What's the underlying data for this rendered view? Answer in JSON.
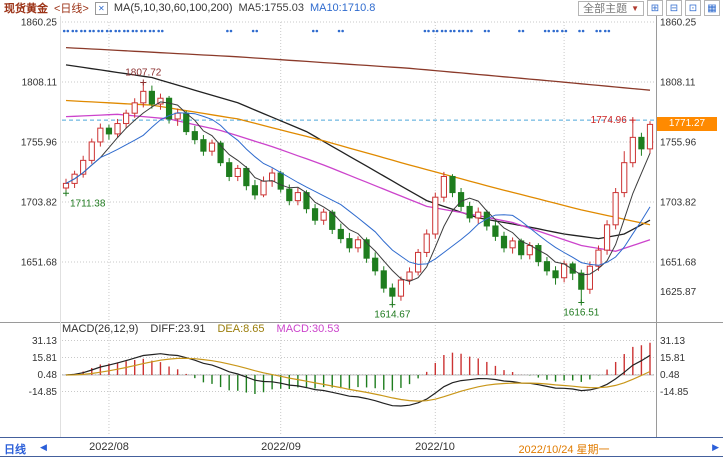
{
  "toolbar": {
    "symbol": "现货黄金",
    "period": "<日线>",
    "checkbox_icon": "✕",
    "ma_params": "MA(5,10,30,60,100,200)",
    "ma5": "MA5:1755.03",
    "ma10": "MA10:1710.8",
    "theme": "全部主题",
    "caret_icon": "▼",
    "layout_icons": [
      "⊞",
      "⊟",
      "⊡",
      "▦"
    ]
  },
  "axes": {
    "left_labels": [
      "1860.25",
      "1808.11",
      "1755.96",
      "1703.82",
      "1651.68"
    ],
    "right_labels": [
      "1860.25",
      "1808.11",
      "1755.96",
      "1703.82",
      "1651.68"
    ],
    "right_extra": "1625.87",
    "price_tag": "1771.27"
  },
  "bottom_bar": {
    "period": "日线",
    "left_arrow_icon": "◀",
    "right_arrow_icon": "▶",
    "x_labels": [
      "2022/08",
      "2022/09",
      "2022/10"
    ],
    "current_date": "2022/10/24 星期一"
  },
  "indicator": {
    "title": "MACD(26,12,9)",
    "diff": "DIFF:23.91",
    "dea": "DEA:8.65",
    "macd": "MACD:30.53",
    "scale_labels": [
      "31.13",
      "15.81",
      "0.48",
      "-14.85"
    ]
  },
  "annotations": [
    {
      "text": "1807.72",
      "day": 9,
      "price": 1807.72,
      "type": "high",
      "align": "middle",
      "color": "#8b2f2f"
    },
    {
      "text": "1711.38",
      "day": 0,
      "price": 1711.38,
      "type": "low",
      "align": "left",
      "color": "#1f7a1f"
    },
    {
      "text": "1614.67",
      "day": 38,
      "price": 1614.67,
      "type": "low",
      "align": "middle",
      "color": "#1f7a1f"
    },
    {
      "text": "1616.51",
      "day": 60,
      "price": 1616.51,
      "type": "low",
      "align": "middle",
      "color": "#1f7a1f"
    },
    {
      "text": "1774.96",
      "day": 66,
      "price": 1774.96,
      "type": "high",
      "align": "right",
      "color": "#cc2222"
    }
  ],
  "colors": {
    "up": "#cc3333",
    "down": "#1e7d1e",
    "ma5": "#3c3c3c",
    "ma10": "#2f6bce",
    "dots": "#2f6bce",
    "diff": "#222222",
    "dea": "#c9971a",
    "hist_up": "#cc3333",
    "hist_down": "#1e7d1e",
    "dashed_line": "#4da6d9",
    "tag_bg": "#ff8a00",
    "highlight_orange": "#e07b00",
    "title_red": "#9c3317",
    "blue_ui": "#2b5fd9",
    "annotation_green": "#1f7a1f",
    "annotation_red": "#cc2222",
    "annotation_darkred": "#8b2f2f"
  },
  "chart_data": {
    "type": "candlestick",
    "title": "现货黄金 日线",
    "price_gridlines": [
      1860.25,
      1808.11,
      1755.96,
      1703.82,
      1651.68
    ],
    "right_extra_level": 1625.87,
    "dashed_level": 1774.96,
    "last_price": 1771.27,
    "x_gridline_days": [
      5,
      25,
      43,
      58
    ],
    "x_gridline_labels": [
      "2022/08",
      "2022/09",
      "2022/10",
      "2022/10/24 星期一"
    ],
    "candles": [
      [
        1716,
        1724,
        1711.38,
        1720
      ],
      [
        1720,
        1731,
        1716,
        1728
      ],
      [
        1728,
        1744,
        1725,
        1740
      ],
      [
        1740,
        1759,
        1737,
        1756
      ],
      [
        1756,
        1772,
        1752,
        1768
      ],
      [
        1768,
        1771,
        1758,
        1763
      ],
      [
        1763,
        1776,
        1760,
        1772
      ],
      [
        1772,
        1784,
        1768,
        1781
      ],
      [
        1781,
        1794,
        1777,
        1790
      ],
      [
        1790,
        1807.72,
        1786,
        1800
      ],
      [
        1800,
        1805,
        1785,
        1789
      ],
      [
        1789,
        1798,
        1784,
        1794
      ],
      [
        1794,
        1796,
        1772,
        1776
      ],
      [
        1776,
        1785,
        1770,
        1781
      ],
      [
        1781,
        1783,
        1762,
        1765
      ],
      [
        1765,
        1770,
        1754,
        1758
      ],
      [
        1758,
        1762,
        1744,
        1748
      ],
      [
        1748,
        1758,
        1744,
        1755
      ],
      [
        1755,
        1757,
        1735,
        1738
      ],
      [
        1738,
        1742,
        1722,
        1726
      ],
      [
        1726,
        1736,
        1722,
        1733
      ],
      [
        1733,
        1735,
        1714,
        1718
      ],
      [
        1718,
        1723,
        1706,
        1710
      ],
      [
        1710,
        1726,
        1708,
        1722
      ],
      [
        1722,
        1733,
        1717,
        1729
      ],
      [
        1729,
        1731,
        1712,
        1715
      ],
      [
        1715,
        1719,
        1701,
        1705
      ],
      [
        1705,
        1716,
        1701,
        1712
      ],
      [
        1712,
        1714,
        1694,
        1698
      ],
      [
        1698,
        1702,
        1684,
        1688
      ],
      [
        1688,
        1698,
        1684,
        1695
      ],
      [
        1695,
        1697,
        1676,
        1680
      ],
      [
        1680,
        1685,
        1668,
        1672
      ],
      [
        1672,
        1677,
        1660,
        1664
      ],
      [
        1664,
        1674,
        1660,
        1671
      ],
      [
        1671,
        1673,
        1651,
        1655
      ],
      [
        1655,
        1660,
        1640,
        1644
      ],
      [
        1644,
        1648,
        1625,
        1629
      ],
      [
        1629,
        1633,
        1614.67,
        1622
      ],
      [
        1622,
        1639,
        1618,
        1636
      ],
      [
        1636,
        1647,
        1632,
        1643
      ],
      [
        1643,
        1663,
        1640,
        1660
      ],
      [
        1660,
        1680,
        1656,
        1676
      ],
      [
        1676,
        1712,
        1672,
        1708
      ],
      [
        1708,
        1730,
        1704,
        1726
      ],
      [
        1726,
        1728,
        1708,
        1712
      ],
      [
        1712,
        1716,
        1696,
        1700
      ],
      [
        1700,
        1704,
        1686,
        1690
      ],
      [
        1690,
        1699,
        1685,
        1695
      ],
      [
        1695,
        1697,
        1679,
        1683
      ],
      [
        1683,
        1687,
        1670,
        1674
      ],
      [
        1674,
        1678,
        1660,
        1664
      ],
      [
        1664,
        1673,
        1659,
        1670
      ],
      [
        1670,
        1672,
        1654,
        1658
      ],
      [
        1658,
        1669,
        1654,
        1666
      ],
      [
        1666,
        1668,
        1648,
        1652
      ],
      [
        1652,
        1656,
        1640,
        1644
      ],
      [
        1644,
        1648,
        1632,
        1638
      ],
      [
        1638,
        1653,
        1634,
        1650
      ],
      [
        1650,
        1652,
        1636,
        1642
      ],
      [
        1642,
        1645,
        1616.51,
        1628
      ],
      [
        1628,
        1652,
        1624,
        1648
      ],
      [
        1648,
        1666,
        1644,
        1662
      ],
      [
        1662,
        1688,
        1658,
        1684
      ],
      [
        1684,
        1716,
        1680,
        1712
      ],
      [
        1712,
        1748,
        1708,
        1738
      ],
      [
        1738,
        1774.96,
        1734,
        1760
      ],
      [
        1760,
        1764,
        1744,
        1750
      ],
      [
        1750,
        1774,
        1746,
        1771.27
      ]
    ],
    "signal_dot_days": [
      0,
      1,
      2,
      3,
      4,
      5,
      6,
      7,
      8,
      9,
      10,
      11,
      19,
      22,
      29,
      32,
      42,
      43,
      44,
      45,
      46,
      47,
      49,
      53,
      56,
      57,
      58,
      60,
      62,
      63
    ],
    "ma_anchor_lines": [
      {
        "name": "ma200",
        "color": "#8b3a2a",
        "points": [
          [
            0,
            1838
          ],
          [
            20,
            1830
          ],
          [
            40,
            1820
          ],
          [
            55,
            1810
          ],
          [
            68,
            1801
          ]
        ]
      },
      {
        "name": "ma100",
        "color": "#222222",
        "points": [
          [
            0,
            1823
          ],
          [
            10,
            1812
          ],
          [
            20,
            1790
          ],
          [
            28,
            1765
          ],
          [
            35,
            1735
          ],
          [
            42,
            1705
          ],
          [
            48,
            1690
          ],
          [
            54,
            1682
          ],
          [
            58,
            1676
          ],
          [
            62,
            1672
          ],
          [
            65,
            1676
          ],
          [
            68,
            1688
          ]
        ]
      },
      {
        "name": "ma60",
        "color": "#e08a00",
        "points": [
          [
            0,
            1792
          ],
          [
            10,
            1788
          ],
          [
            20,
            1776
          ],
          [
            30,
            1757
          ],
          [
            40,
            1736
          ],
          [
            50,
            1716
          ],
          [
            60,
            1697
          ],
          [
            68,
            1684
          ]
        ]
      },
      {
        "name": "ma30",
        "color": "#cc44cc",
        "points": [
          [
            0,
            1778
          ],
          [
            6,
            1780
          ],
          [
            12,
            1776
          ],
          [
            18,
            1766
          ],
          [
            24,
            1752
          ],
          [
            30,
            1736
          ],
          [
            36,
            1718
          ],
          [
            42,
            1700
          ],
          [
            48,
            1692
          ],
          [
            52,
            1686
          ],
          [
            56,
            1676
          ],
          [
            60,
            1666
          ],
          [
            64,
            1661
          ],
          [
            68,
            1671
          ]
        ]
      }
    ],
    "macd_gridlines": [
      31.13,
      15.81,
      0.48,
      -14.85
    ],
    "macd_params": {
      "fast": 12,
      "slow": 26,
      "signal": 9
    }
  }
}
